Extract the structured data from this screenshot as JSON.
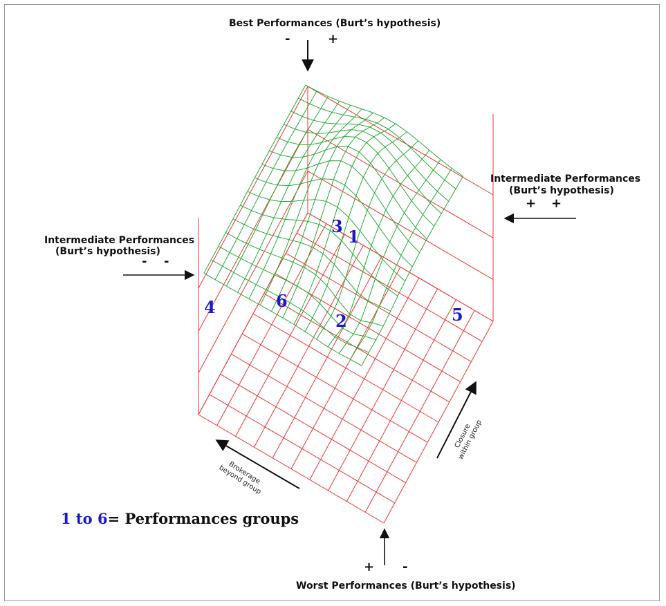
{
  "labels": {
    "best": "Best Performances (Burt’s hypothesis)",
    "worst": "Worst  Performances (Burt’s hypothesis)",
    "intermediate_left_line1": "Intermediate Performances",
    "intermediate_left_line2": "(Burt’s hypothesis)",
    "intermediate_right_line1": "Intermediate Performances",
    "intermediate_right_line2": "(Burt’s hypothesis)"
  },
  "signs": {
    "top_minus": "-",
    "top_plus": "+",
    "left_minus_1": "-",
    "left_minus_2": "-",
    "right_plus_1": "+",
    "right_plus_2": "+",
    "bottom_plus": "+",
    "bottom_minus": "-"
  },
  "axes": {
    "brokerage_line1": "Brokerage",
    "brokerage_line2": "beyond group",
    "closure_line1": "Closure",
    "closure_line2": "within group"
  },
  "groups": [
    "1",
    "2",
    "3",
    "4",
    "5",
    "6"
  ],
  "legend": {
    "range": "1 to 6",
    "text": "= Performances groups"
  },
  "colors": {
    "box": "#ee3333",
    "surface": "#22aa33",
    "groups": "#1a1acc",
    "arrows": "#111111"
  }
}
